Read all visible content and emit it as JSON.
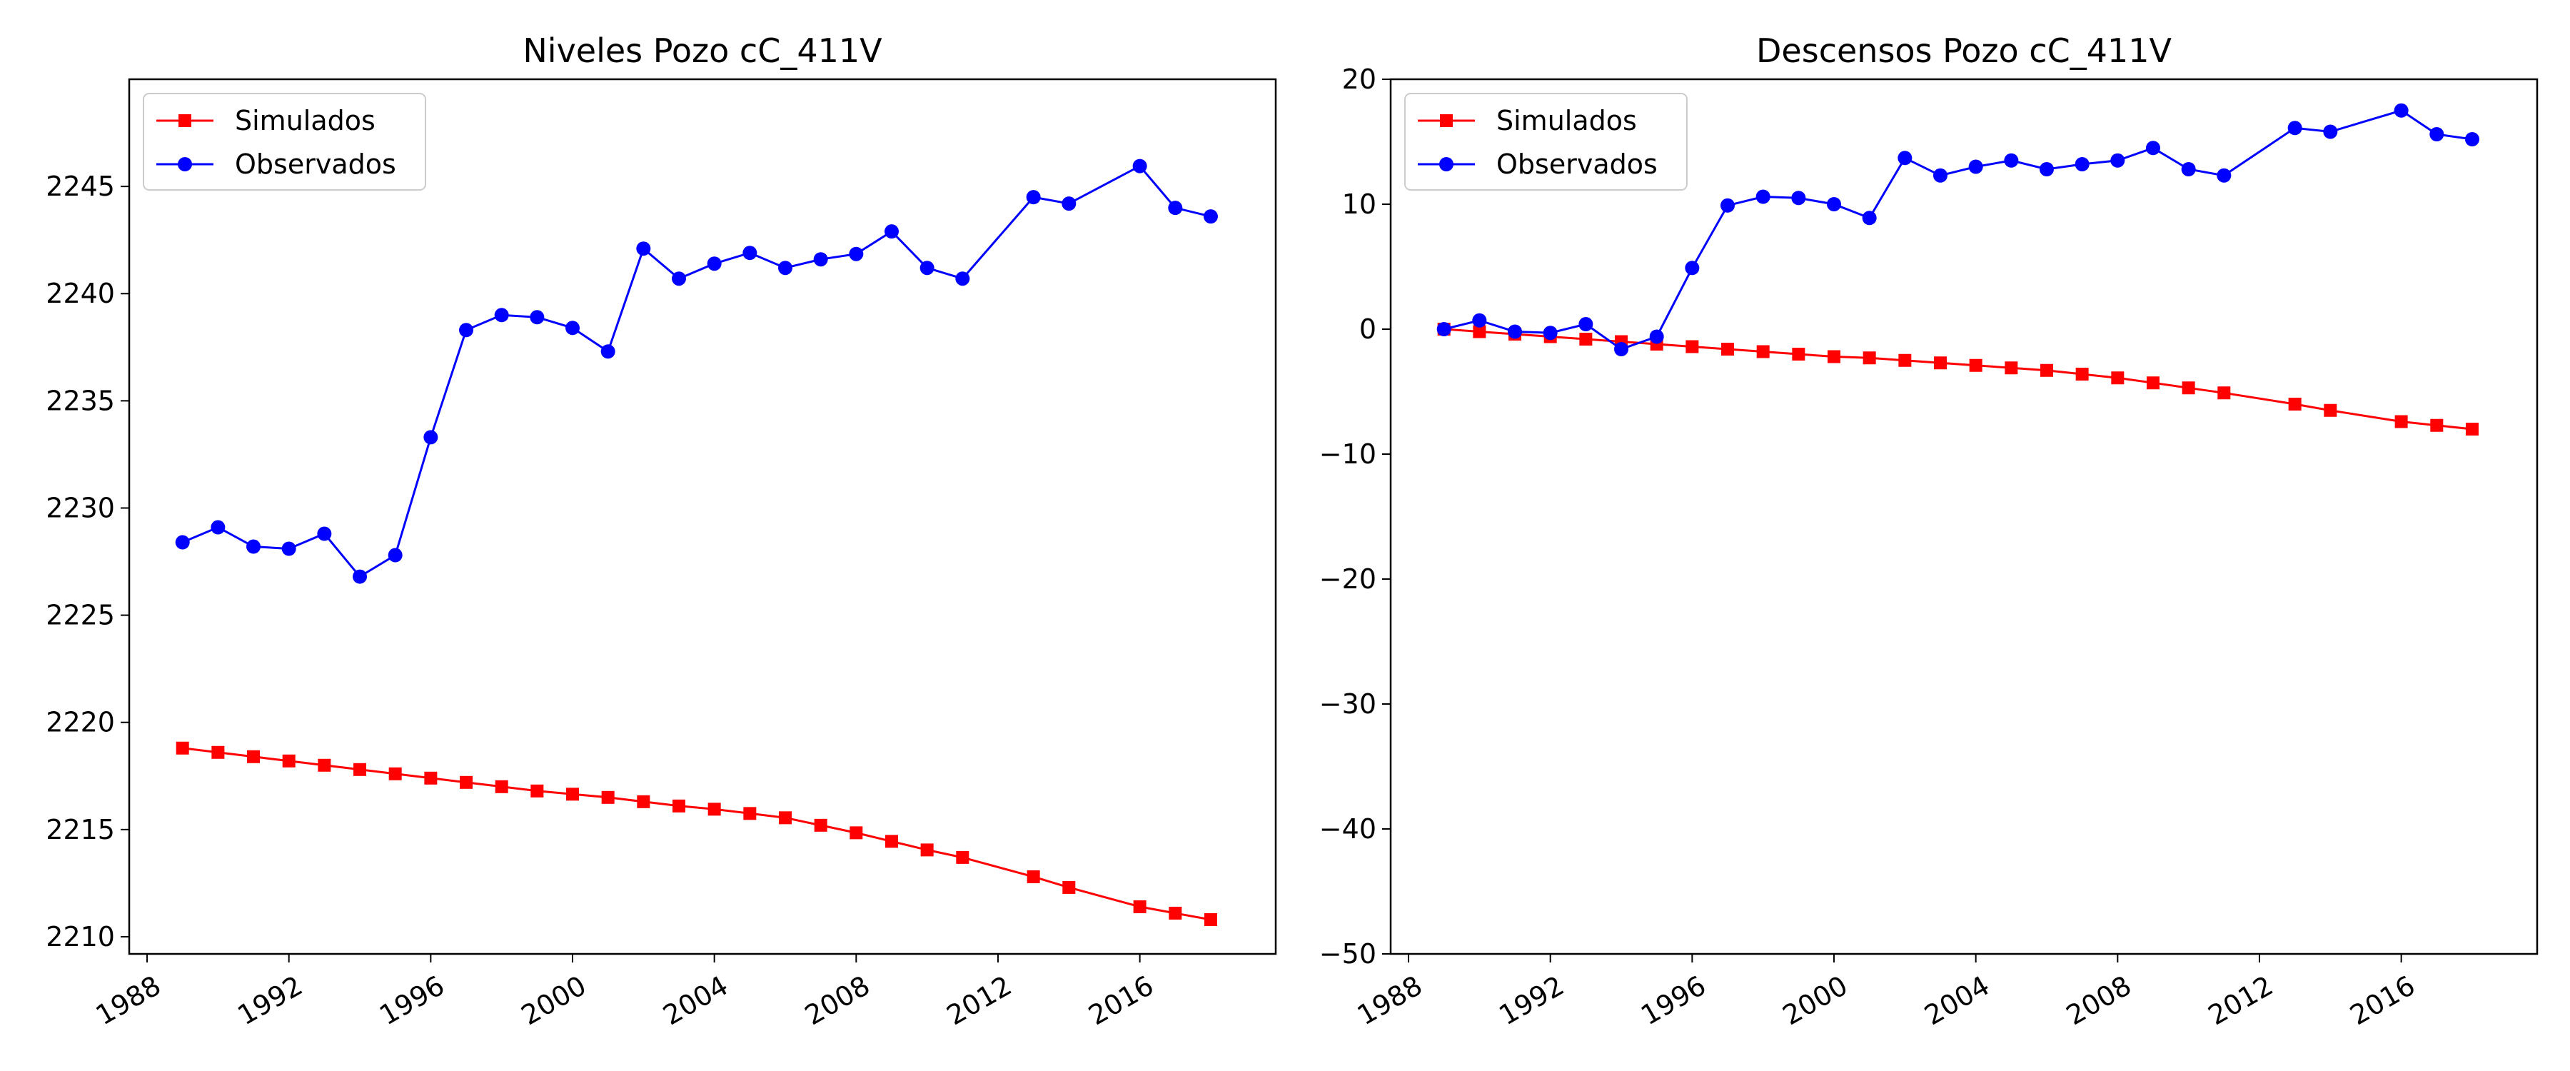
{
  "chart_data": [
    {
      "type": "line",
      "title": "Niveles Pozo cC_411V",
      "xlabel": "",
      "ylabel": "",
      "xlim": [
        "1987-07-01",
        "2019-11-01"
      ],
      "ylim": [
        2209.2,
        2250.0
      ],
      "x_ticks": [
        "1988",
        "1992",
        "1996",
        "2000",
        "2004",
        "2008",
        "2012",
        "2016"
      ],
      "y_ticks": [
        "2210",
        "2215",
        "2220",
        "2225",
        "2230",
        "2235",
        "2240",
        "2245"
      ],
      "legend_position": "top-left",
      "grid": false,
      "series": [
        {
          "name": "Simulados",
          "color": "#ff0000",
          "marker": "square",
          "x": [
            "1989-01-01",
            "1990-01-01",
            "1991-01-01",
            "1992-01-01",
            "1993-01-01",
            "1994-01-01",
            "1995-01-01",
            "1996-01-01",
            "1997-01-01",
            "1998-01-01",
            "1999-01-01",
            "2000-01-01",
            "2001-01-01",
            "2002-01-01",
            "2003-01-01",
            "2004-01-01",
            "2005-01-01",
            "2006-01-01",
            "2007-01-01",
            "2008-01-01",
            "2009-01-01",
            "2010-01-01",
            "2011-01-01",
            "2013-01-01",
            "2014-01-01",
            "2016-01-01",
            "2017-01-01",
            "2018-01-01"
          ],
          "y": [
            2218.8,
            2218.6,
            2218.4,
            2218.2,
            2218.0,
            2217.8,
            2217.6,
            2217.4,
            2217.2,
            2217.0,
            2216.8,
            2216.65,
            2216.5,
            2216.3,
            2216.1,
            2215.95,
            2215.75,
            2215.55,
            2215.2,
            2214.85,
            2214.45,
            2214.05,
            2213.7,
            2212.8,
            2212.3,
            2211.4,
            2211.1,
            2210.8
          ]
        },
        {
          "name": "Observados",
          "color": "#0000ff",
          "marker": "circle",
          "x": [
            "1989-01-01",
            "1990-01-01",
            "1991-01-01",
            "1992-01-01",
            "1993-01-01",
            "1994-01-01",
            "1995-01-01",
            "1996-01-01",
            "1997-01-01",
            "1998-01-01",
            "1999-01-01",
            "2000-01-01",
            "2001-01-01",
            "2002-01-01",
            "2003-01-01",
            "2004-01-01",
            "2005-01-01",
            "2006-01-01",
            "2007-01-01",
            "2008-01-01",
            "2009-01-01",
            "2010-01-01",
            "2011-01-01",
            "2013-01-01",
            "2014-01-01",
            "2016-01-01",
            "2017-01-01",
            "2018-01-01"
          ],
          "y": [
            2228.4,
            2229.1,
            2228.2,
            2228.1,
            2228.8,
            2226.8,
            2227.8,
            2233.3,
            2238.3,
            2239.0,
            2238.9,
            2238.4,
            2237.3,
            2242.1,
            2240.7,
            2241.4,
            2241.9,
            2241.2,
            2241.6,
            2241.85,
            2242.9,
            2241.2,
            2240.7,
            2244.5,
            2244.2,
            2245.95,
            2244.0,
            2243.6
          ]
        }
      ]
    },
    {
      "type": "line",
      "title": "Descensos Pozo cC_411V",
      "xlabel": "",
      "ylabel": "",
      "xlim": [
        "1987-07-01",
        "2019-11-01"
      ],
      "ylim": [
        -50,
        20
      ],
      "x_ticks": [
        "1988",
        "1992",
        "1996",
        "2000",
        "2004",
        "2008",
        "2012",
        "2016"
      ],
      "y_ticks": [
        "20",
        "10",
        "0",
        "−10",
        "−20",
        "−30",
        "−40",
        "−50"
      ],
      "legend_position": "top-left",
      "grid": false,
      "series": [
        {
          "name": "Simulados",
          "color": "#ff0000",
          "marker": "square",
          "x": [
            "1989-01-01",
            "1990-01-01",
            "1991-01-01",
            "1992-01-01",
            "1993-01-01",
            "1994-01-01",
            "1995-01-01",
            "1996-01-01",
            "1997-01-01",
            "1998-01-01",
            "1999-01-01",
            "2000-01-01",
            "2001-01-01",
            "2002-01-01",
            "2003-01-01",
            "2004-01-01",
            "2005-01-01",
            "2006-01-01",
            "2007-01-01",
            "2008-01-01",
            "2009-01-01",
            "2010-01-01",
            "2011-01-01",
            "2013-01-01",
            "2014-01-01",
            "2016-01-01",
            "2017-01-01",
            "2018-01-01"
          ],
          "y": [
            0.0,
            -0.2,
            -0.4,
            -0.6,
            -0.8,
            -1.0,
            -1.2,
            -1.4,
            -1.6,
            -1.8,
            -2.0,
            -2.2,
            -2.3,
            -2.5,
            -2.7,
            -2.9,
            -3.1,
            -3.3,
            -3.6,
            -3.9,
            -4.3,
            -4.7,
            -5.1,
            -6.0,
            -6.5,
            -7.4,
            -7.7,
            -8.0
          ]
        },
        {
          "name": "Observados",
          "color": "#0000ff",
          "marker": "circle",
          "x": [
            "1989-01-01",
            "1990-01-01",
            "1991-01-01",
            "1992-01-01",
            "1993-01-01",
            "1994-01-01",
            "1995-01-01",
            "1996-01-01",
            "1997-01-01",
            "1998-01-01",
            "1999-01-01",
            "2000-01-01",
            "2001-01-01",
            "2002-01-01",
            "2003-01-01",
            "2004-01-01",
            "2005-01-01",
            "2006-01-01",
            "2007-01-01",
            "2008-01-01",
            "2009-01-01",
            "2010-01-01",
            "2011-01-01",
            "2013-01-01",
            "2014-01-01",
            "2016-01-01",
            "2017-01-01",
            "2018-01-01"
          ],
          "y": [
            0.0,
            0.7,
            -0.2,
            -0.3,
            0.4,
            -1.6,
            -0.6,
            4.9,
            9.9,
            10.6,
            10.5,
            10.0,
            8.9,
            13.7,
            12.3,
            13.0,
            13.5,
            12.8,
            13.2,
            13.5,
            14.5,
            12.8,
            12.3,
            16.1,
            15.8,
            17.5,
            15.6,
            15.2
          ]
        }
      ]
    }
  ]
}
